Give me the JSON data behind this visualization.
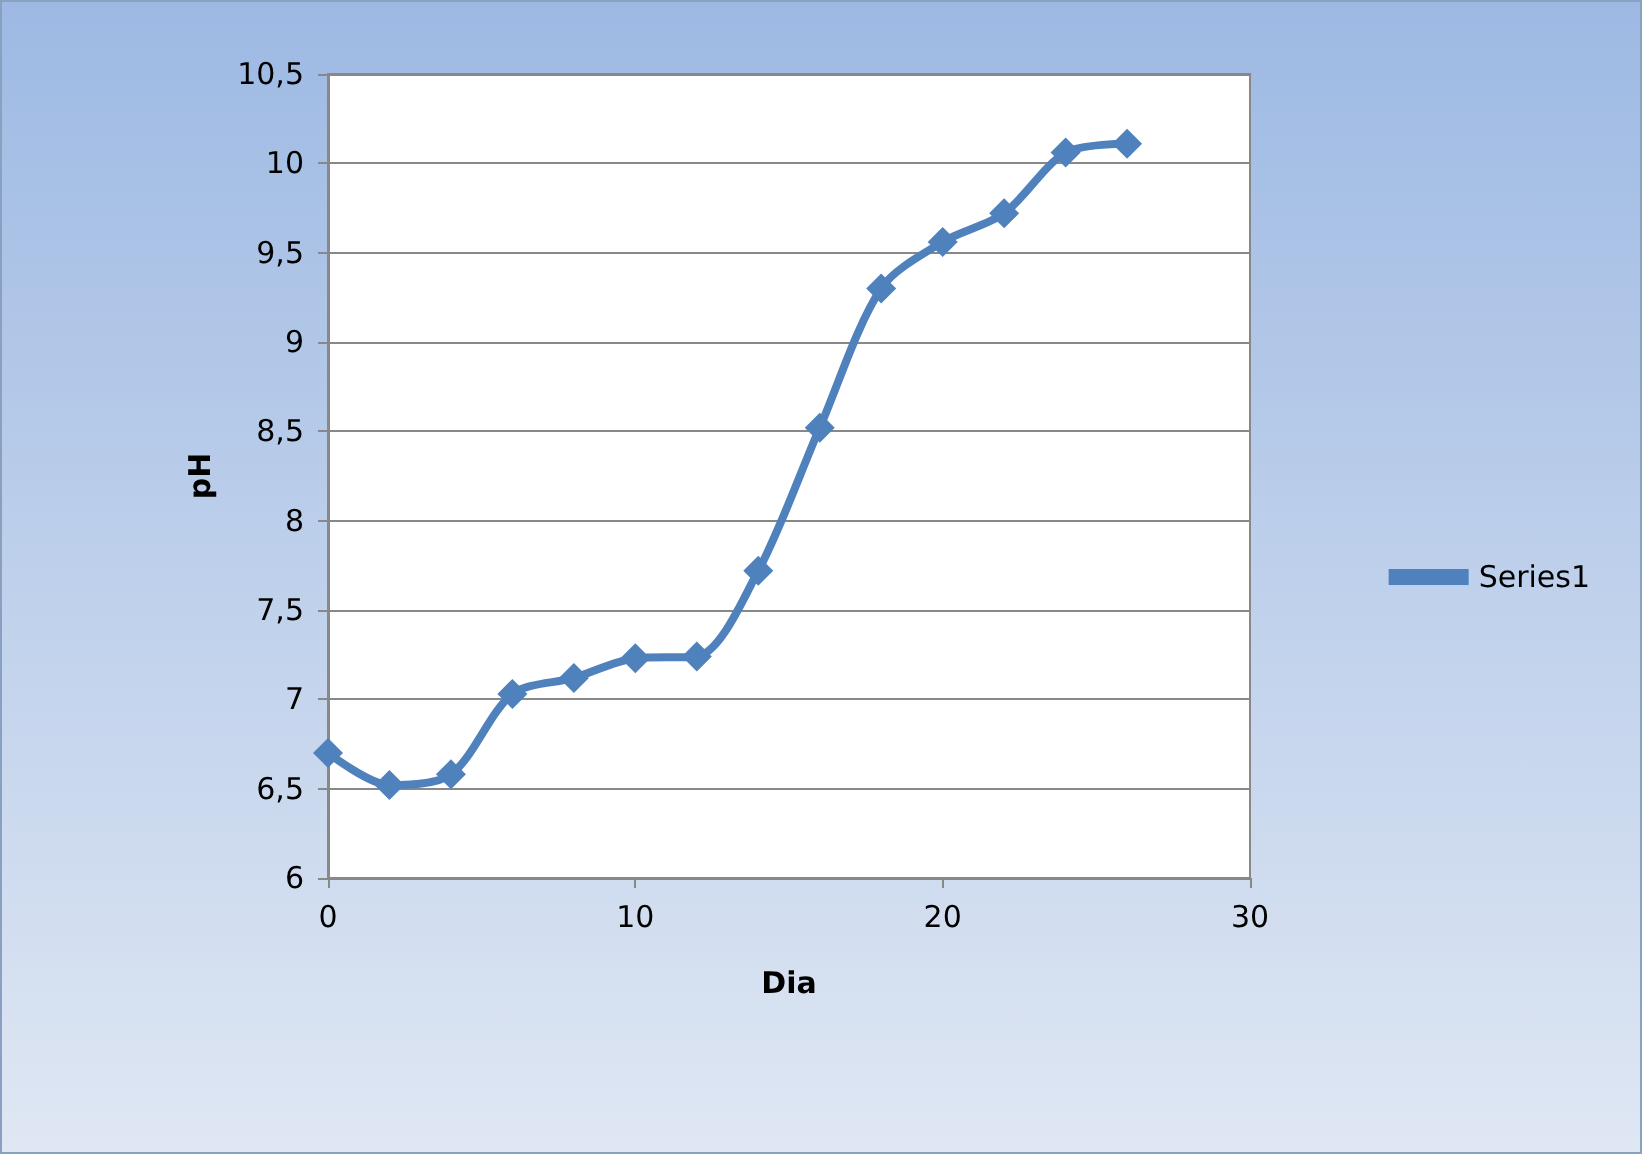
{
  "chart_data": {
    "type": "line",
    "xlabel": "Dia",
    "ylabel": "pH",
    "series": [
      {
        "name": "Series1",
        "color": "#4f81bd",
        "x": [
          0,
          2,
          4,
          6,
          8,
          10,
          12,
          14,
          16,
          18,
          20,
          22,
          24,
          26
        ],
        "values": [
          6.7,
          6.52,
          6.58,
          7.03,
          7.12,
          7.23,
          7.24,
          7.72,
          8.52,
          9.3,
          9.56,
          9.72,
          10.06,
          10.11
        ]
      }
    ],
    "xlim": [
      0,
      30
    ],
    "xticks": [
      0,
      10,
      20,
      30
    ],
    "ylim": [
      6,
      10.5
    ],
    "yticks": [
      6,
      {
        "value": 6.5,
        "label": "6,5"
      },
      7,
      {
        "value": 7.5,
        "label": "7,5"
      },
      8,
      {
        "value": 8.5,
        "label": "8,5"
      },
      9,
      {
        "value": 9.5,
        "label": "9,5"
      },
      10,
      {
        "value": 10.5,
        "label": "10,5"
      }
    ],
    "grid": "y",
    "legend": "right",
    "marker": "diamond",
    "line_style": "solid"
  }
}
